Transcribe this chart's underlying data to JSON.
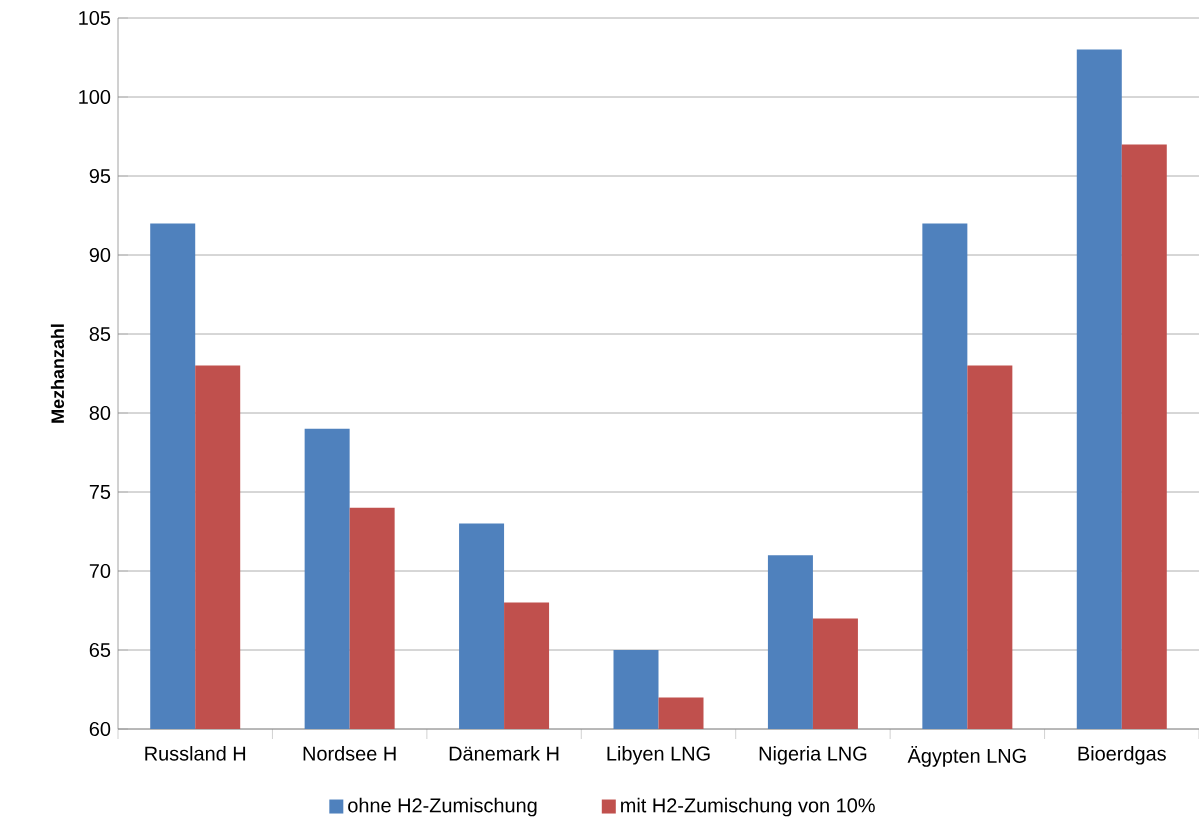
{
  "chart_data": {
    "type": "bar",
    "ylabel": "Mezhanzahl",
    "categories": [
      "Russland H",
      "Nordsee H",
      "Dänemark H",
      "Libyen LNG",
      "Nigeria LNG",
      "Ägypten LNG",
      "Bioerdgas"
    ],
    "series": [
      {
        "name": "ohne H2-Zumischung",
        "color": "#4f81bd",
        "values": [
          92,
          79,
          73,
          65,
          71,
          92,
          103
        ]
      },
      {
        "name": "mit H2-Zumischung von 10%",
        "color": "#c0504d",
        "values": [
          83,
          74,
          68,
          62,
          67,
          83,
          97
        ]
      }
    ],
    "ylim": [
      60,
      105
    ],
    "yticks": [
      60,
      65,
      70,
      75,
      80,
      85,
      90,
      95,
      100,
      105
    ],
    "grid": "y",
    "legend": "bottom"
  }
}
